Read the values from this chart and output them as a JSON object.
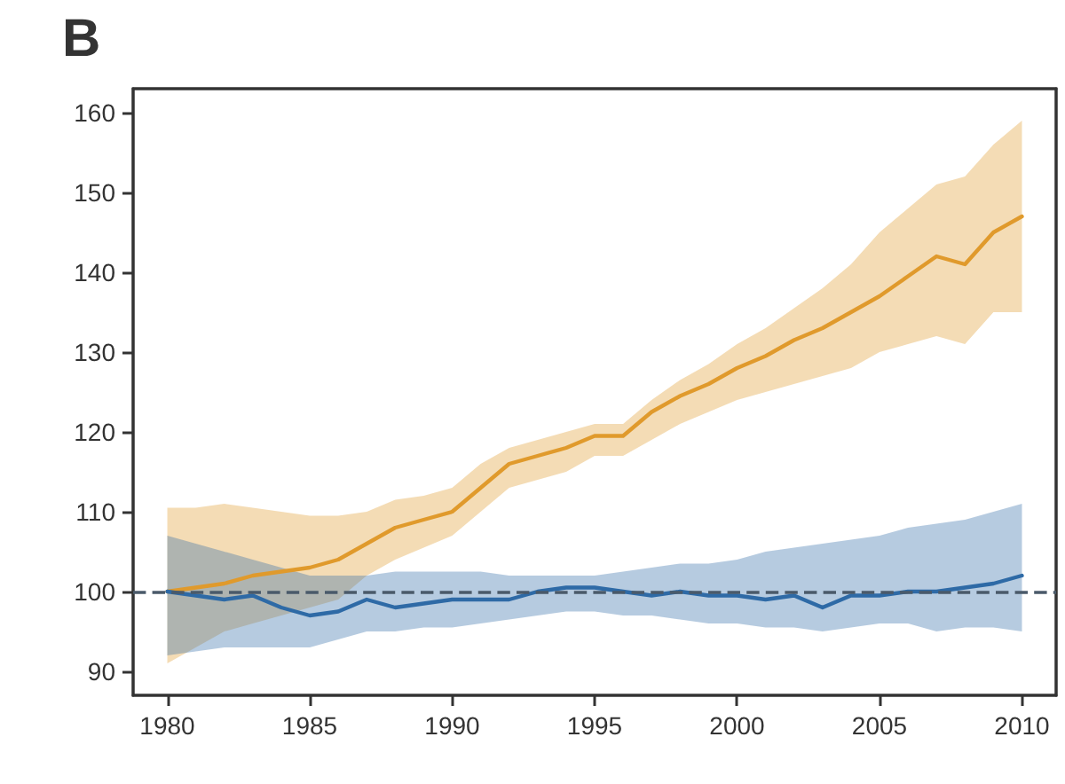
{
  "chart_data": {
    "type": "line",
    "title": "B",
    "x": [
      1980,
      1981,
      1982,
      1983,
      1984,
      1985,
      1986,
      1987,
      1988,
      1989,
      1990,
      1991,
      1992,
      1993,
      1994,
      1995,
      1996,
      1997,
      1998,
      1999,
      2000,
      2001,
      2002,
      2003,
      2004,
      2005,
      2006,
      2007,
      2008,
      2009,
      2010
    ],
    "series": [
      {
        "color": "#e09a2c",
        "values": [
          100,
          100.5,
          101,
          102,
          102.5,
          103,
          104,
          106,
          108,
          109,
          110,
          113,
          116,
          117,
          118,
          119.5,
          119.5,
          122.5,
          124.5,
          126,
          128,
          129.5,
          131.5,
          133,
          135,
          137,
          139.5,
          142,
          141,
          145,
          147
        ],
        "lower": [
          91,
          93,
          95,
          96,
          97,
          98,
          99,
          102,
          104,
          105.5,
          107,
          110,
          113,
          114,
          115,
          117,
          117,
          119,
          121,
          122.5,
          124,
          125,
          126,
          127,
          128,
          130,
          131,
          132,
          131,
          135,
          135
        ],
        "upper": [
          110.5,
          110.5,
          111,
          110.5,
          110,
          109.5,
          109.5,
          110,
          111.5,
          112,
          113,
          116,
          118,
          119,
          120,
          121,
          121,
          124,
          126.5,
          128.5,
          131,
          133,
          135.5,
          138,
          141,
          145,
          148,
          151,
          152,
          156,
          159
        ]
      },
      {
        "color": "#2e6aa6",
        "values": [
          100,
          99.5,
          99,
          99.5,
          98,
          97,
          97.5,
          99,
          98,
          98.5,
          99,
          99,
          99,
          100,
          100.5,
          100.5,
          100,
          99.5,
          100,
          99.5,
          99.5,
          99,
          99.5,
          98,
          99.5,
          99.5,
          100,
          100,
          100.5,
          101,
          102
        ],
        "lower": [
          92,
          92.5,
          93,
          93,
          93,
          93,
          94,
          95,
          95,
          95.5,
          95.5,
          96,
          96.5,
          97,
          97.5,
          97.5,
          97,
          97,
          96.5,
          96,
          96,
          95.5,
          95.5,
          95,
          95.5,
          96,
          96,
          95,
          95.5,
          95.5,
          95
        ],
        "upper": [
          107,
          106,
          105,
          104,
          103,
          102,
          102,
          102,
          102.5,
          102.5,
          102.5,
          102.5,
          102,
          102,
          102,
          102,
          102.5,
          103,
          103.5,
          103.5,
          104,
          105,
          105.5,
          106,
          106.5,
          107,
          108,
          108.5,
          109,
          110,
          111
        ]
      }
    ],
    "ref_lines": [
      {
        "axis": "y",
        "value": 100,
        "label": null,
        "color": "#4a5a6a",
        "line_style": "dashed"
      }
    ],
    "xlim": [
      1978.8,
      2011.2
    ],
    "xticks": [
      1980,
      1985,
      1990,
      1995,
      2000,
      2005,
      2010
    ],
    "ylim": [
      87,
      163
    ],
    "yticks": [
      90,
      100,
      110,
      120,
      130,
      140,
      150,
      160
    ],
    "grid": false,
    "marker": "none",
    "line_style": "solid"
  }
}
